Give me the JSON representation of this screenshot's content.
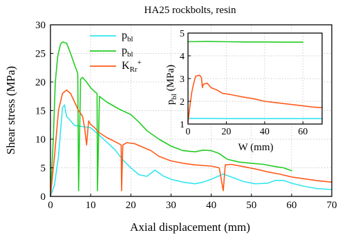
{
  "chart_data": [
    {
      "type": "line",
      "title": "HA25 rockbolts, resin",
      "xlabel": "Axial displacement (mm)",
      "ylabel": "Shear stress (MPa)",
      "xlim": [
        0,
        70
      ],
      "ylim": [
        0,
        30
      ],
      "xticks": [
        "0",
        "10",
        "20",
        "30",
        "40",
        "50",
        "60",
        "70"
      ],
      "yticks": [
        "0",
        "5",
        "10",
        "15",
        "20",
        "25",
        "30"
      ],
      "grid": true,
      "legend_position": "top-left inside",
      "legend": [
        {
          "main": "p",
          "sub": "bl",
          "sup": "",
          "color": "#33e5f0"
        },
        {
          "main": "p",
          "sub": "bl",
          "sup": "",
          "color": "#22cc22"
        },
        {
          "main": "K",
          "sub": "Rr",
          "sup": "+",
          "color": "#ff5a1a"
        }
      ],
      "series": [
        {
          "color": "#33e5f0",
          "points": [
            [
              0,
              0
            ],
            [
              1,
              2
            ],
            [
              2,
              7
            ],
            [
              3,
              15.5
            ],
            [
              3.5,
              16
            ],
            [
              4,
              14
            ],
            [
              5,
              13.2
            ],
            [
              6,
              12.4
            ],
            [
              7,
              12.3
            ],
            [
              8,
              12.2
            ],
            [
              10,
              12
            ],
            [
              12,
              10.8
            ],
            [
              14,
              9.5
            ],
            [
              16,
              8.2
            ],
            [
              18,
              6.4
            ],
            [
              20,
              5
            ],
            [
              22,
              3.8
            ],
            [
              24,
              3.5
            ],
            [
              26,
              4.6
            ],
            [
              28,
              3.6
            ],
            [
              30,
              3
            ],
            [
              33,
              2.5
            ],
            [
              36,
              2.2
            ],
            [
              38,
              2.5
            ],
            [
              40,
              3
            ],
            [
              43,
              3.9
            ],
            [
              45,
              3.4
            ],
            [
              48,
              2.6
            ],
            [
              51,
              2.2
            ],
            [
              54,
              2.3
            ],
            [
              56,
              2.8
            ],
            [
              58,
              2.8
            ],
            [
              60,
              2.3
            ],
            [
              63,
              1.8
            ],
            [
              66,
              1.4
            ],
            [
              70,
              1.2
            ]
          ]
        },
        {
          "color": "#22cc22",
          "points": [
            [
              0,
              0
            ],
            [
              0.7,
              10
            ],
            [
              1.2,
              20
            ],
            [
              1.8,
              24.5
            ],
            [
              2.5,
              26.6
            ],
            [
              3,
              27
            ],
            [
              4,
              26.8
            ],
            [
              5,
              25
            ],
            [
              6,
              23
            ],
            [
              6.8,
              21.5
            ],
            [
              7,
              1
            ],
            [
              7.5,
              20.5
            ],
            [
              8,
              20.8
            ],
            [
              9,
              20
            ],
            [
              10,
              19
            ],
            [
              11,
              18.3
            ],
            [
              11.6,
              18
            ],
            [
              11.7,
              1
            ],
            [
              12.2,
              17.5
            ],
            [
              14,
              16.5
            ],
            [
              17,
              15.3
            ],
            [
              20,
              14.3
            ],
            [
              22,
              13
            ],
            [
              24,
              11.5
            ],
            [
              27,
              10
            ],
            [
              30,
              8.8
            ],
            [
              33,
              8
            ],
            [
              36,
              7.8
            ],
            [
              38,
              8.1
            ],
            [
              40,
              8
            ],
            [
              42,
              7.5
            ],
            [
              44,
              6.5
            ],
            [
              47,
              6
            ],
            [
              50,
              5.8
            ],
            [
              53,
              5.6
            ],
            [
              56,
              5.2
            ],
            [
              58,
              5
            ],
            [
              60,
              4.5
            ]
          ]
        },
        {
          "color": "#ff5a1a",
          "points": [
            [
              0,
              0
            ],
            [
              1,
              7
            ],
            [
              2,
              15
            ],
            [
              3,
              18
            ],
            [
              4,
              18.6
            ],
            [
              5,
              18
            ],
            [
              6,
              16.5
            ],
            [
              7,
              15
            ],
            [
              8,
              14
            ],
            [
              8.5,
              12
            ],
            [
              9,
              9
            ],
            [
              9.5,
              13.2
            ],
            [
              10,
              12.6
            ],
            [
              11,
              12
            ],
            [
              12,
              11.2
            ],
            [
              14,
              10.3
            ],
            [
              16,
              9.6
            ],
            [
              17.6,
              9
            ],
            [
              17.7,
              1
            ],
            [
              18,
              9
            ],
            [
              19,
              9.4
            ],
            [
              21,
              9.2
            ],
            [
              23,
              8.6
            ],
            [
              25,
              8
            ],
            [
              27,
              7
            ],
            [
              30,
              6.2
            ],
            [
              33,
              5.8
            ],
            [
              36,
              5.5
            ],
            [
              40,
              5.3
            ],
            [
              42,
              5
            ],
            [
              43,
              1
            ],
            [
              43.5,
              5.5
            ],
            [
              45,
              5.6
            ],
            [
              48,
              5.2
            ],
            [
              51,
              4.8
            ],
            [
              54,
              4.3
            ],
            [
              57,
              3.9
            ],
            [
              60,
              3.4
            ],
            [
              63,
              3.1
            ],
            [
              66,
              2.8
            ],
            [
              70,
              2.5
            ]
          ]
        }
      ]
    },
    {
      "type": "line",
      "title": "",
      "xlabel": "W (mm)",
      "ylabel": "p_bl (MPa)",
      "ylabel_main": "p",
      "ylabel_sub": "bl",
      "ylabel_rest": " (MPa)",
      "xlim": [
        0,
        70
      ],
      "ylim": [
        1,
        5
      ],
      "xticks": [
        "0",
        "20",
        "40",
        "60"
      ],
      "yticks": [
        "1",
        "2",
        "3",
        "4",
        "5"
      ],
      "grid": true,
      "series": [
        {
          "color": "#22cc22",
          "points": [
            [
              0,
              4.62
            ],
            [
              10,
              4.63
            ],
            [
              20,
              4.62
            ],
            [
              30,
              4.61
            ],
            [
              40,
              4.61
            ],
            [
              50,
              4.6
            ],
            [
              60,
              4.6
            ]
          ]
        },
        {
          "color": "#33e5f0",
          "points": [
            [
              0,
              1.25
            ],
            [
              10,
              1.25
            ],
            [
              20,
              1.24
            ],
            [
              30,
              1.24
            ],
            [
              40,
              1.24
            ],
            [
              50,
              1.24
            ],
            [
              60,
              1.24
            ],
            [
              70,
              1.24
            ]
          ]
        },
        {
          "color": "#ff5a1a",
          "points": [
            [
              0,
              1.1
            ],
            [
              1,
              1.8
            ],
            [
              2,
              2.4
            ],
            [
              3,
              2.8
            ],
            [
              4,
              3.1
            ],
            [
              6,
              3.15
            ],
            [
              7,
              3.05
            ],
            [
              7.5,
              2.6
            ],
            [
              8,
              2.75
            ],
            [
              10,
              2.8
            ],
            [
              12,
              2.6
            ],
            [
              15,
              2.5
            ],
            [
              18,
              2.35
            ],
            [
              22,
              2.3
            ],
            [
              28,
              2.2
            ],
            [
              35,
              2.1
            ],
            [
              40,
              2
            ],
            [
              45,
              1.95
            ],
            [
              50,
              1.9
            ],
            [
              55,
              1.85
            ],
            [
              60,
              1.8
            ],
            [
              65,
              1.75
            ],
            [
              70,
              1.72
            ]
          ]
        }
      ]
    }
  ]
}
